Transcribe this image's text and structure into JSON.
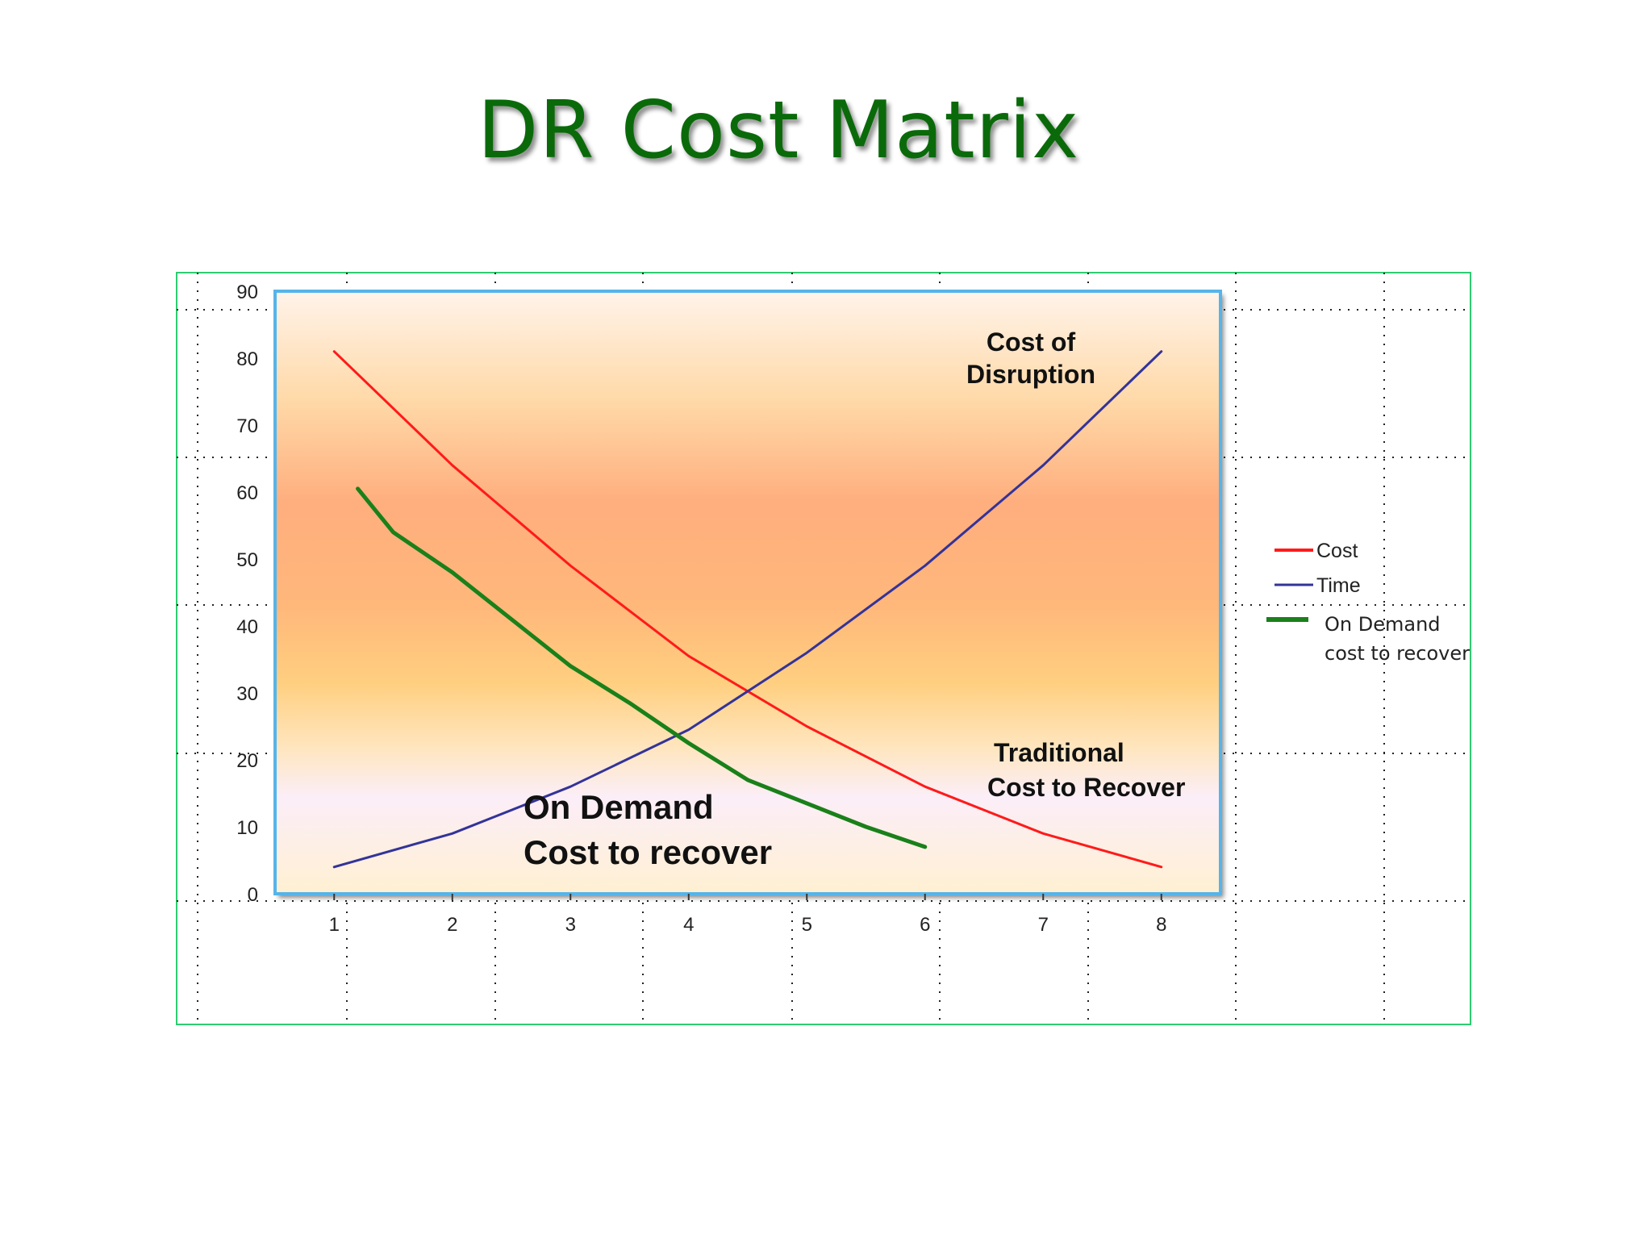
{
  "slide": {
    "title": "DR  Cost Matrix"
  },
  "colors": {
    "cost": "#ff1a1a",
    "time": "#333399",
    "on_demand": "#1a801a",
    "frame": "#2ecc71",
    "plot_border": "#56b4e9"
  },
  "chart_data": {
    "type": "line",
    "title": "",
    "xlabel": "",
    "ylabel": "",
    "xlim": [
      0.5,
      8.5
    ],
    "ylim": [
      0,
      90
    ],
    "x_ticks": [
      "1",
      "2",
      "3",
      "4",
      "5",
      "6",
      "7",
      "8"
    ],
    "y_ticks": [
      "0",
      "10",
      "20",
      "30",
      "40",
      "50",
      "60",
      "70",
      "80",
      "90"
    ],
    "grid": true,
    "legend_position": "right",
    "series": [
      {
        "name": "Cost",
        "color_key": "cost",
        "x": [
          1,
          2,
          3,
          4,
          5,
          6,
          7,
          8
        ],
        "values": [
          81,
          64,
          49,
          35.5,
          25,
          16,
          9,
          4
        ]
      },
      {
        "name": "Time",
        "color_key": "time",
        "x": [
          1,
          2,
          3,
          4,
          5,
          6,
          7,
          8
        ],
        "values": [
          4,
          9,
          16,
          24.5,
          36,
          49,
          64,
          81
        ]
      },
      {
        "name": "On Demand cost to recover",
        "color_key": "on_demand",
        "x": [
          1.2,
          1.5,
          2,
          2.5,
          3,
          3.5,
          4,
          4.5,
          5,
          5.5,
          6
        ],
        "values": [
          60.5,
          54,
          48,
          41,
          34,
          28.5,
          22.5,
          17,
          13.5,
          10,
          7
        ]
      }
    ],
    "legend": [
      {
        "label": "Cost",
        "color_key": "cost"
      },
      {
        "label": "Time",
        "color_key": "time"
      },
      {
        "label_lines": [
          "On Demand",
          "cost to recover"
        ],
        "color_key": "on_demand"
      }
    ],
    "annotations": {
      "disruption": [
        "Cost of",
        "Disruption"
      ],
      "traditional": [
        "Traditional",
        "Cost to Recover"
      ],
      "on_demand": [
        "On Demand",
        "Cost to recover"
      ]
    }
  }
}
